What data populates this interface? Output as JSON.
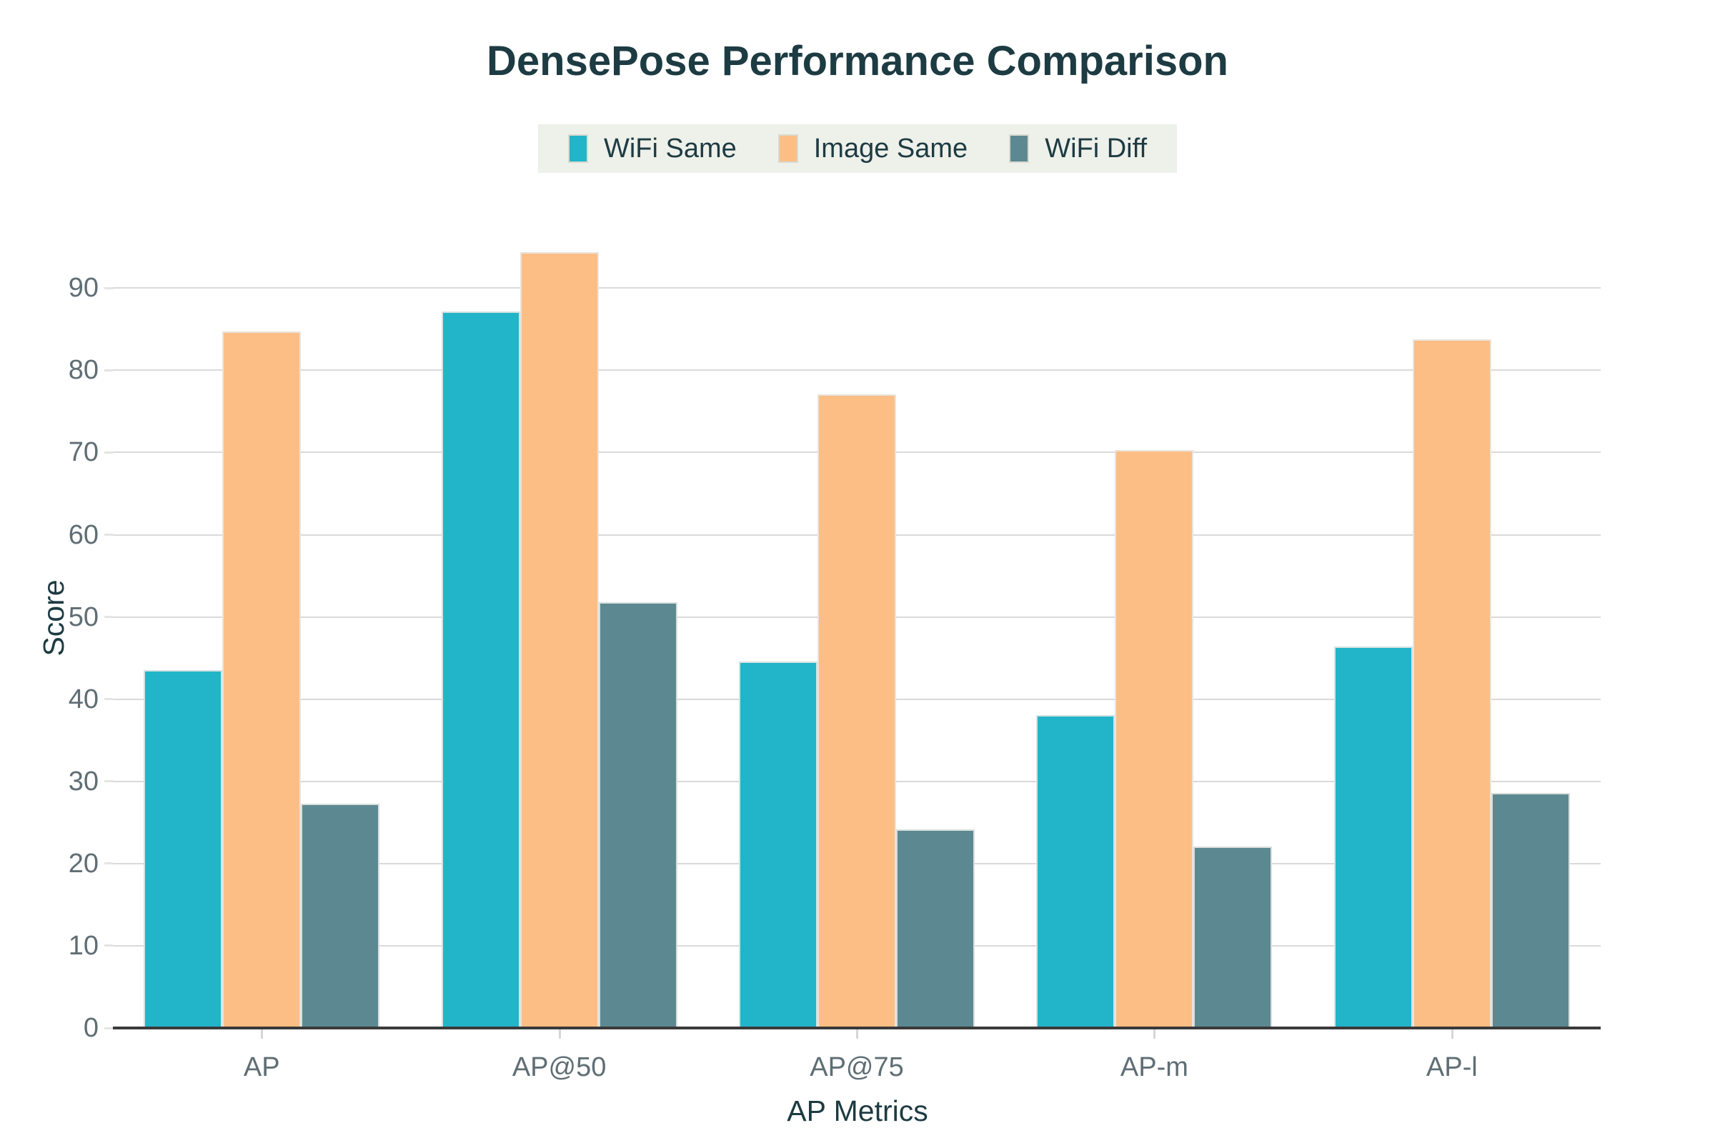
{
  "chart": {
    "title": "DensePose Performance Comparison",
    "xlabel": "AP Metrics",
    "ylabel": "Score"
  },
  "chart_data": {
    "type": "bar",
    "title": "DensePose Performance Comparison",
    "xlabel": "AP Metrics",
    "ylabel": "Score",
    "categories": [
      "AP",
      "AP@50",
      "AP@75",
      "AP-m",
      "AP-l"
    ],
    "series": [
      {
        "name": "WiFi Same",
        "color": "#22b5c9",
        "values": [
          43.5,
          87.2,
          44.6,
          38.1,
          46.4
        ]
      },
      {
        "name": "Image Same",
        "color": "#fcbe85",
        "values": [
          84.7,
          94.4,
          77.1,
          70.3,
          83.8
        ]
      },
      {
        "name": "WiFi Diff",
        "color": "#5c8892",
        "values": [
          27.3,
          51.8,
          24.2,
          22.1,
          28.6
        ]
      }
    ],
    "yticks": [
      0,
      10,
      20,
      30,
      40,
      50,
      60,
      70,
      80,
      90
    ],
    "ylim": [
      0,
      95.5
    ],
    "grid": true,
    "legend_position": "top-center"
  },
  "colors": {
    "background": "#ffffff",
    "title_text": "#1d3b42",
    "tick_text": "#5f6e74",
    "gridline": "#dadada",
    "axis_line": "#3a3a3a",
    "legend_bg": "#eef0ea",
    "bar_edge": "#e8e8e4"
  }
}
